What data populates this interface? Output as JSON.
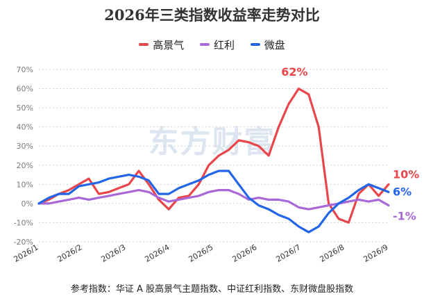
{
  "chart_data": {
    "type": "line",
    "title": "2026年三类指数收益率走势对比",
    "x": [
      "2026/1",
      "2026/1",
      "2026/1",
      "2026/1",
      "2026/2",
      "2026/2",
      "2026/2",
      "2026/2",
      "2026/3",
      "2026/3",
      "2026/3",
      "2026/3",
      "2026/4",
      "2026/4",
      "2026/4",
      "2026/4",
      "2026/5",
      "2026/5",
      "2026/5",
      "2026/5",
      "2026/6",
      "2026/6",
      "2026/6",
      "2026/6",
      "2026/7",
      "2026/7",
      "2026/7",
      "2026/7",
      "2026/8",
      "2026/8",
      "2026/8",
      "2026/8",
      "2026/9",
      "2026/9",
      "2026/9",
      "2026/9"
    ],
    "x_ticks": [
      "2026/1",
      "2026/2",
      "2026/3",
      "2026/4",
      "2026/5",
      "2026/6",
      "2026/7",
      "2026/8",
      "2026/9"
    ],
    "ylim": [
      -20,
      70
    ],
    "y_ticks": [
      "-20%",
      "-10%",
      "0%",
      "10%",
      "20%",
      "30%",
      "40%",
      "50%",
      "60%",
      "70%"
    ],
    "grid": "horizontal-dotted",
    "legend": "top-center",
    "series": [
      {
        "name": "高景气",
        "color": "#e9464b",
        "values": [
          0,
          2,
          5,
          7,
          10,
          13,
          5,
          6,
          8,
          10,
          17,
          10,
          2,
          -3,
          3,
          4,
          10,
          20,
          25,
          28,
          33,
          32,
          30,
          25,
          40,
          52,
          60,
          57,
          40,
          0,
          -8,
          -10,
          5,
          10,
          4,
          10
        ],
        "end_label": "10%",
        "peak_label": "62%"
      },
      {
        "name": "红利",
        "color": "#a868d7",
        "values": [
          0,
          0,
          1,
          2,
          3,
          2,
          3,
          4,
          5,
          6,
          7,
          6,
          3,
          1,
          2,
          3,
          4,
          6,
          7,
          7,
          5,
          2,
          3,
          2,
          2,
          1,
          -2,
          -3,
          -2,
          -1,
          0,
          1,
          2,
          1,
          2,
          -1
        ],
        "end_label": "-1%"
      },
      {
        "name": "微盘",
        "color": "#2265e8",
        "values": [
          0,
          3,
          5,
          5,
          9,
          10,
          11,
          13,
          14,
          15,
          14,
          12,
          5,
          5,
          8,
          10,
          12,
          15,
          17,
          17,
          10,
          3,
          -1,
          -3,
          -6,
          -8,
          -12,
          -15,
          -12,
          -5,
          0,
          3,
          7,
          10,
          8,
          6
        ],
        "end_label": "6%"
      }
    ]
  },
  "watermark": "东方财富",
  "footnote": "参考指数：华证 A 股高景气主题指数、中证红利指数、东财微盘股指数"
}
